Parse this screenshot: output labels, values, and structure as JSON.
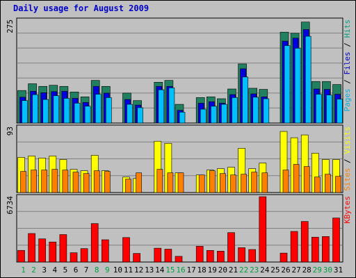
{
  "chart_data": [
    {
      "type": "bar",
      "title": "Daily usage for August 2009",
      "right_label": {
        "parts": [
          "Pages",
          " / ",
          "Files",
          " / ",
          "Hits"
        ],
        "colors": [
          "#00b0e0",
          "#000000",
          "#0000cc",
          "#000000",
          "#00a080"
        ]
      },
      "ymax_label": "275",
      "ylim": [
        0,
        275
      ],
      "categories": [
        "1",
        "2",
        "3",
        "4",
        "5",
        "6",
        "7",
        "8",
        "9",
        "10",
        "11",
        "12",
        "13",
        "14",
        "15",
        "16",
        "17",
        "18",
        "19",
        "20",
        "21",
        "22",
        "23",
        "24",
        "25",
        "26",
        "27",
        "28",
        "29",
        "30",
        "31"
      ],
      "series": [
        {
          "name": "Hits",
          "color": "#208060",
          "values": [
            87,
            105,
            98,
            101,
            98,
            83,
            70,
            114,
            98,
            0,
            80,
            60,
            0,
            109,
            114,
            50,
            0,
            68,
            70,
            65,
            91,
            158,
            93,
            90,
            0,
            243,
            240,
            270,
            111,
            111,
            103
          ]
        },
        {
          "name": "Files",
          "color": "#0000e0",
          "values": [
            69,
            85,
            81,
            84,
            85,
            66,
            55,
            98,
            80,
            0,
            63,
            48,
            0,
            98,
            98,
            34,
            0,
            53,
            57,
            53,
            76,
            145,
            78,
            70,
            0,
            219,
            227,
            250,
            91,
            90,
            77
          ]
        },
        {
          "name": "Pages",
          "color": "#00c0ff",
          "values": [
            60,
            76,
            63,
            73,
            66,
            53,
            45,
            77,
            68,
            0,
            50,
            41,
            0,
            89,
            94,
            29,
            0,
            37,
            45,
            50,
            68,
            123,
            69,
            65,
            0,
            207,
            200,
            232,
            77,
            75,
            64
          ]
        }
      ]
    },
    {
      "type": "bar",
      "right_label": {
        "parts": [
          "Sites",
          " / ",
          "Visits"
        ],
        "colors": [
          "#ff8000",
          "#000000",
          "#ffff00"
        ]
      },
      "ymax_label": "93",
      "ylim": [
        0,
        93
      ],
      "categories": [
        "1",
        "2",
        "3",
        "4",
        "5",
        "6",
        "7",
        "8",
        "9",
        "10",
        "11",
        "12",
        "13",
        "14",
        "15",
        "16",
        "17",
        "18",
        "19",
        "20",
        "21",
        "22",
        "23",
        "24",
        "25",
        "26",
        "27",
        "28",
        "29",
        "30",
        "31"
      ],
      "series": [
        {
          "name": "Visits",
          "color": "#ffff00",
          "values": [
            50,
            52,
            49,
            52,
            47,
            33,
            31,
            53,
            31,
            0,
            22,
            20,
            0,
            73,
            70,
            28,
            0,
            25,
            32,
            34,
            36,
            63,
            34,
            42,
            0,
            87,
            78,
            82,
            56,
            47,
            47
          ]
        },
        {
          "name": "Sites",
          "color": "#ff8000",
          "values": [
            30,
            32,
            32,
            33,
            32,
            29,
            27,
            31,
            30,
            0,
            19,
            28,
            0,
            33,
            28,
            28,
            0,
            25,
            31,
            27,
            25,
            26,
            29,
            28,
            0,
            32,
            40,
            37,
            22,
            26,
            23
          ]
        }
      ]
    },
    {
      "type": "bar",
      "right_label": {
        "parts": [
          "KBytes"
        ],
        "colors": [
          "#ff0000"
        ]
      },
      "ymax_label": "6734",
      "ylim": [
        0,
        6734
      ],
      "categories": [
        "1",
        "2",
        "3",
        "4",
        "5",
        "6",
        "7",
        "8",
        "9",
        "10",
        "11",
        "12",
        "13",
        "14",
        "15",
        "16",
        "17",
        "18",
        "19",
        "20",
        "21",
        "22",
        "23",
        "24",
        "25",
        "26",
        "27",
        "28",
        "29",
        "30",
        "31"
      ],
      "series": [
        {
          "name": "KBytes",
          "color": "#ff0000",
          "values": [
            1200,
            2940,
            2387,
            2065,
            2830,
            958,
            1384,
            3962,
            2294,
            0,
            2523,
            885,
            0,
            1424,
            1325,
            586,
            0,
            1628,
            1195,
            1122,
            3032,
            1476,
            1289,
            6734,
            0,
            922,
            3153,
            4180,
            2562,
            2629,
            4538
          ]
        }
      ]
    }
  ],
  "weekend_days": [
    1,
    2,
    8,
    9,
    15,
    16,
    22,
    23,
    29,
    30
  ],
  "colors": {
    "weekday": "#000000",
    "weekend": "#00a040"
  }
}
